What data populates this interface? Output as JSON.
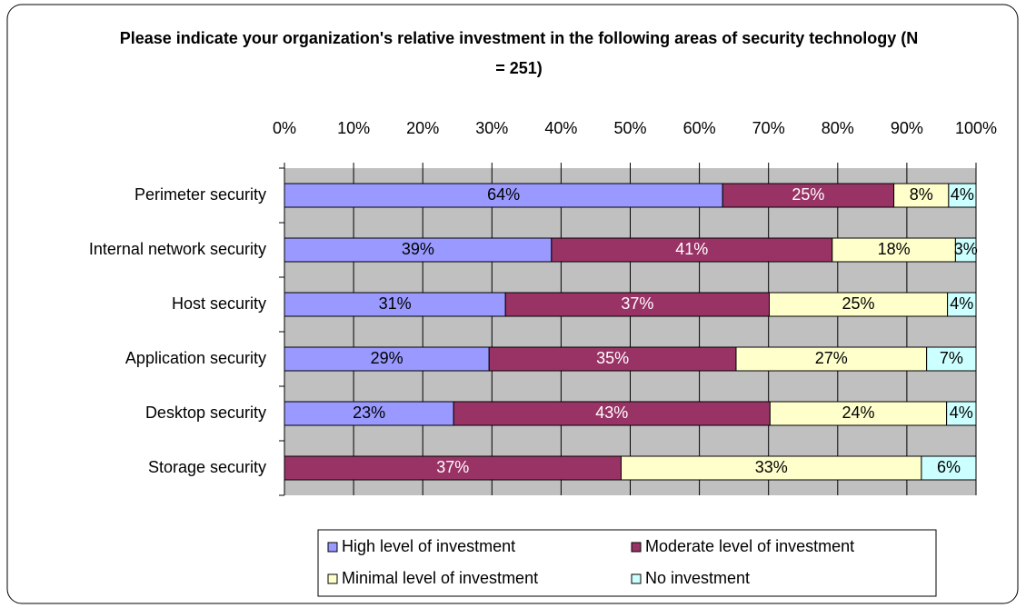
{
  "chart_data": {
    "type": "bar",
    "orientation": "horizontal",
    "stacking": "percent",
    "title": "Please indicate your organization's relative investment in the following areas of security technology (N = 251)",
    "categories": [
      "Perimeter security",
      "Internal network security",
      "Host security",
      "Application security",
      "Desktop security",
      "Storage security"
    ],
    "series": [
      {
        "name": "High level of investment",
        "color": "#9999ff",
        "label_color": "#000000",
        "values": [
          64,
          39,
          31,
          29,
          23,
          null
        ],
        "value_labels": [
          "64%",
          "39%",
          "31%",
          "29%",
          "23%",
          null
        ]
      },
      {
        "name": "Moderate level of investment",
        "color": "#993366",
        "label_color": "#ffffff",
        "values": [
          25,
          41,
          37,
          35,
          43,
          37
        ],
        "value_labels": [
          "25%",
          "41%",
          "37%",
          "35%",
          "43%",
          "37%"
        ]
      },
      {
        "name": "Minimal level of investment",
        "color": "#ffffcc",
        "label_color": "#000000",
        "values": [
          8,
          18,
          25,
          27,
          24,
          33
        ],
        "value_labels": [
          "8%",
          "18%",
          "25%",
          "27%",
          "24%",
          "33%"
        ]
      },
      {
        "name": "No investment",
        "color": "#ccffff",
        "label_color": "#000000",
        "values": [
          4,
          3,
          4,
          7,
          4,
          6
        ],
        "value_labels": [
          "4%",
          "3%",
          "4%",
          "7%",
          "4%",
          "6%"
        ]
      }
    ],
    "xlim": [
      0,
      100
    ],
    "xticks": [
      {
        "value": 0,
        "label": "0%"
      },
      {
        "value": 10,
        "label": "10%"
      },
      {
        "value": 20,
        "label": "20%"
      },
      {
        "value": 30,
        "label": "30%"
      },
      {
        "value": 40,
        "label": "40%"
      },
      {
        "value": 50,
        "label": "50%"
      },
      {
        "value": 60,
        "label": "60%"
      },
      {
        "value": 70,
        "label": "70%"
      },
      {
        "value": 80,
        "label": "80%"
      },
      {
        "value": 90,
        "label": "90%"
      },
      {
        "value": 100,
        "label": "100%"
      }
    ],
    "grid": true,
    "plot_background": "#c0c0c0",
    "legend": "bottom"
  }
}
